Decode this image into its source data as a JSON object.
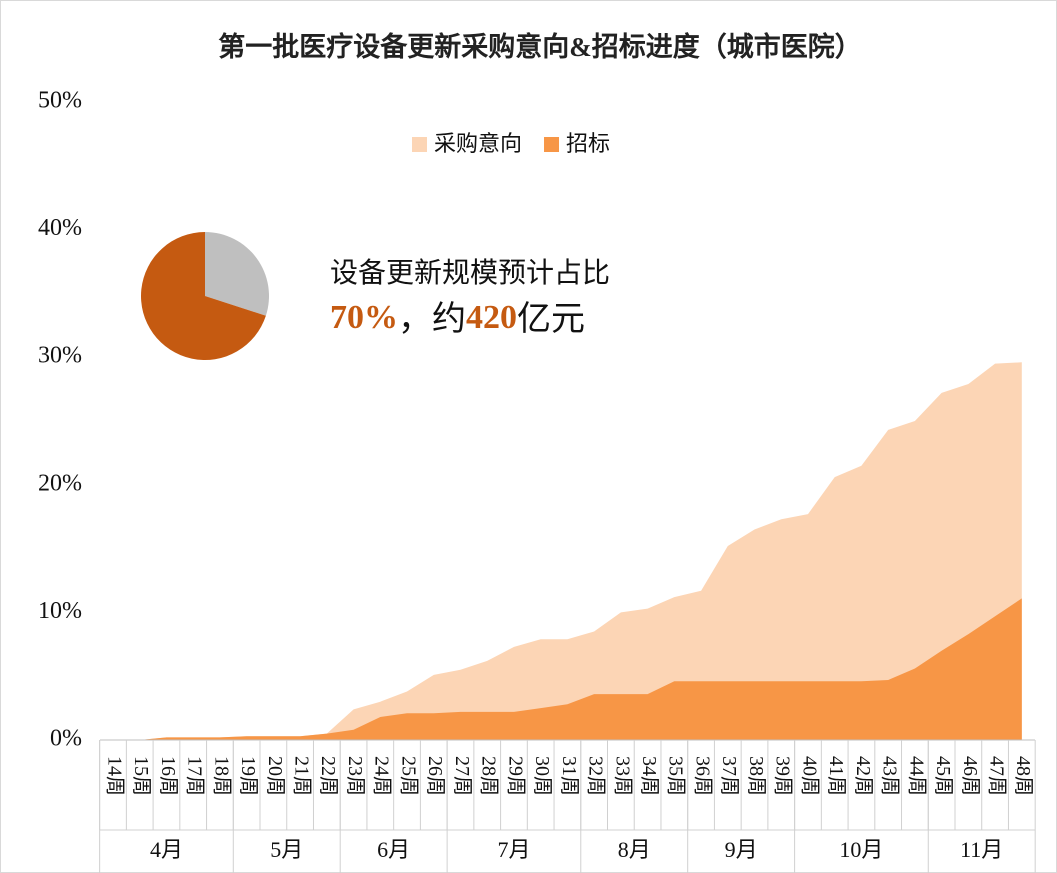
{
  "chart_data": {
    "type": "area",
    "title": "第一批医疗设备更新采购意向&招标进度（城市医院）",
    "categories": [
      "14周",
      "15周",
      "16周",
      "17周",
      "18周",
      "19周",
      "20周",
      "21周",
      "22周",
      "23周",
      "24周",
      "25周",
      "26周",
      "27周",
      "28周",
      "29周",
      "30周",
      "31周",
      "32周",
      "33周",
      "34周",
      "35周",
      "36周",
      "37周",
      "38周",
      "39周",
      "40周",
      "41周",
      "42周",
      "43周",
      "44周",
      "45周",
      "46周",
      "47周",
      "48周"
    ],
    "month_groups": [
      {
        "label": "4月",
        "weeks": 5
      },
      {
        "label": "5月",
        "weeks": 4
      },
      {
        "label": "6月",
        "weeks": 4
      },
      {
        "label": "7月",
        "weeks": 5
      },
      {
        "label": "8月",
        "weeks": 4
      },
      {
        "label": "9月",
        "weeks": 4
      },
      {
        "label": "10月",
        "weeks": 5
      },
      {
        "label": "11月",
        "weeks": 4
      }
    ],
    "series": [
      {
        "name": "采购意向",
        "color": "#fcd5b5",
        "values": [
          0,
          0,
          0.2,
          0.2,
          0.2,
          0.3,
          0.3,
          0.3,
          0.5,
          2.4,
          3.0,
          3.8,
          5.1,
          5.5,
          6.2,
          7.3,
          7.9,
          7.9,
          8.5,
          10.0,
          10.3,
          11.2,
          11.7,
          15.2,
          16.5,
          17.3,
          17.7,
          20.6,
          21.5,
          24.3,
          25.0,
          27.2,
          27.9,
          29.5,
          29.6
        ]
      },
      {
        "name": "招标",
        "color": "#f79646",
        "values": [
          0,
          0,
          0.2,
          0.2,
          0.2,
          0.3,
          0.3,
          0.3,
          0.5,
          0.8,
          1.8,
          2.1,
          2.1,
          2.2,
          2.2,
          2.2,
          2.5,
          2.8,
          3.6,
          3.6,
          3.6,
          4.6,
          4.6,
          4.6,
          4.6,
          4.6,
          4.6,
          4.6,
          4.6,
          4.7,
          5.6,
          7.0,
          8.3,
          9.7,
          11.1
        ]
      }
    ],
    "ylim": [
      0,
      50
    ],
    "yticks": [
      {
        "value": 0,
        "label": "0%"
      },
      {
        "value": 10,
        "label": "10%"
      },
      {
        "value": 20,
        "label": "20%"
      },
      {
        "value": 30,
        "label": "30%"
      },
      {
        "value": 40,
        "label": "40%"
      },
      {
        "value": 50,
        "label": "50%"
      }
    ],
    "legend": "top",
    "inset_pie": {
      "values": [
        30,
        70
      ],
      "colors": [
        "#bfbfbf",
        "#c55a11"
      ]
    },
    "annotation": {
      "line1": "设备更新规模预计占比",
      "share": "70%",
      "mid": "，约",
      "amount": "420",
      "unit": "亿元",
      "highlight_color": "#c55a11"
    }
  }
}
